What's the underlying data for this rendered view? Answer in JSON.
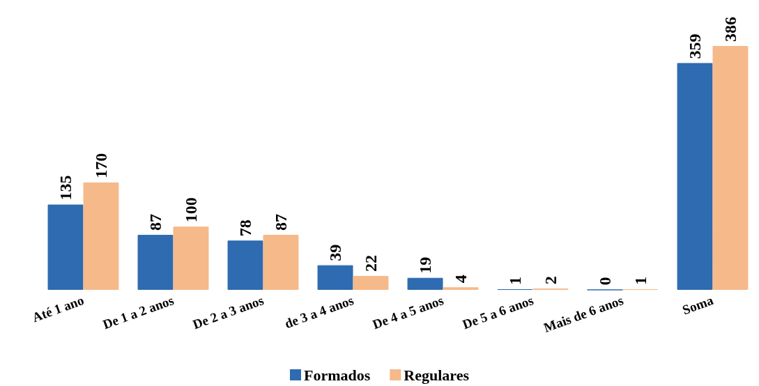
{
  "chart_data": {
    "type": "bar",
    "categories": [
      "Até 1 ano",
      "De 1 a 2 anos",
      "De 2 a 3 anos",
      "de 3 a 4 anos",
      "De 4 a 5 anos",
      "De 5 a 6 anos",
      "Mais de 6 anos",
      "Soma"
    ],
    "series": [
      {
        "name": "Formados",
        "color": "#2e6bb0",
        "values": [
          135,
          87,
          78,
          39,
          19,
          1,
          0,
          359
        ]
      },
      {
        "name": "Regulares",
        "color": "#f6b98a",
        "values": [
          170,
          100,
          87,
          22,
          4,
          2,
          1,
          386
        ]
      }
    ],
    "data_labels": true,
    "legend": "bottom"
  }
}
